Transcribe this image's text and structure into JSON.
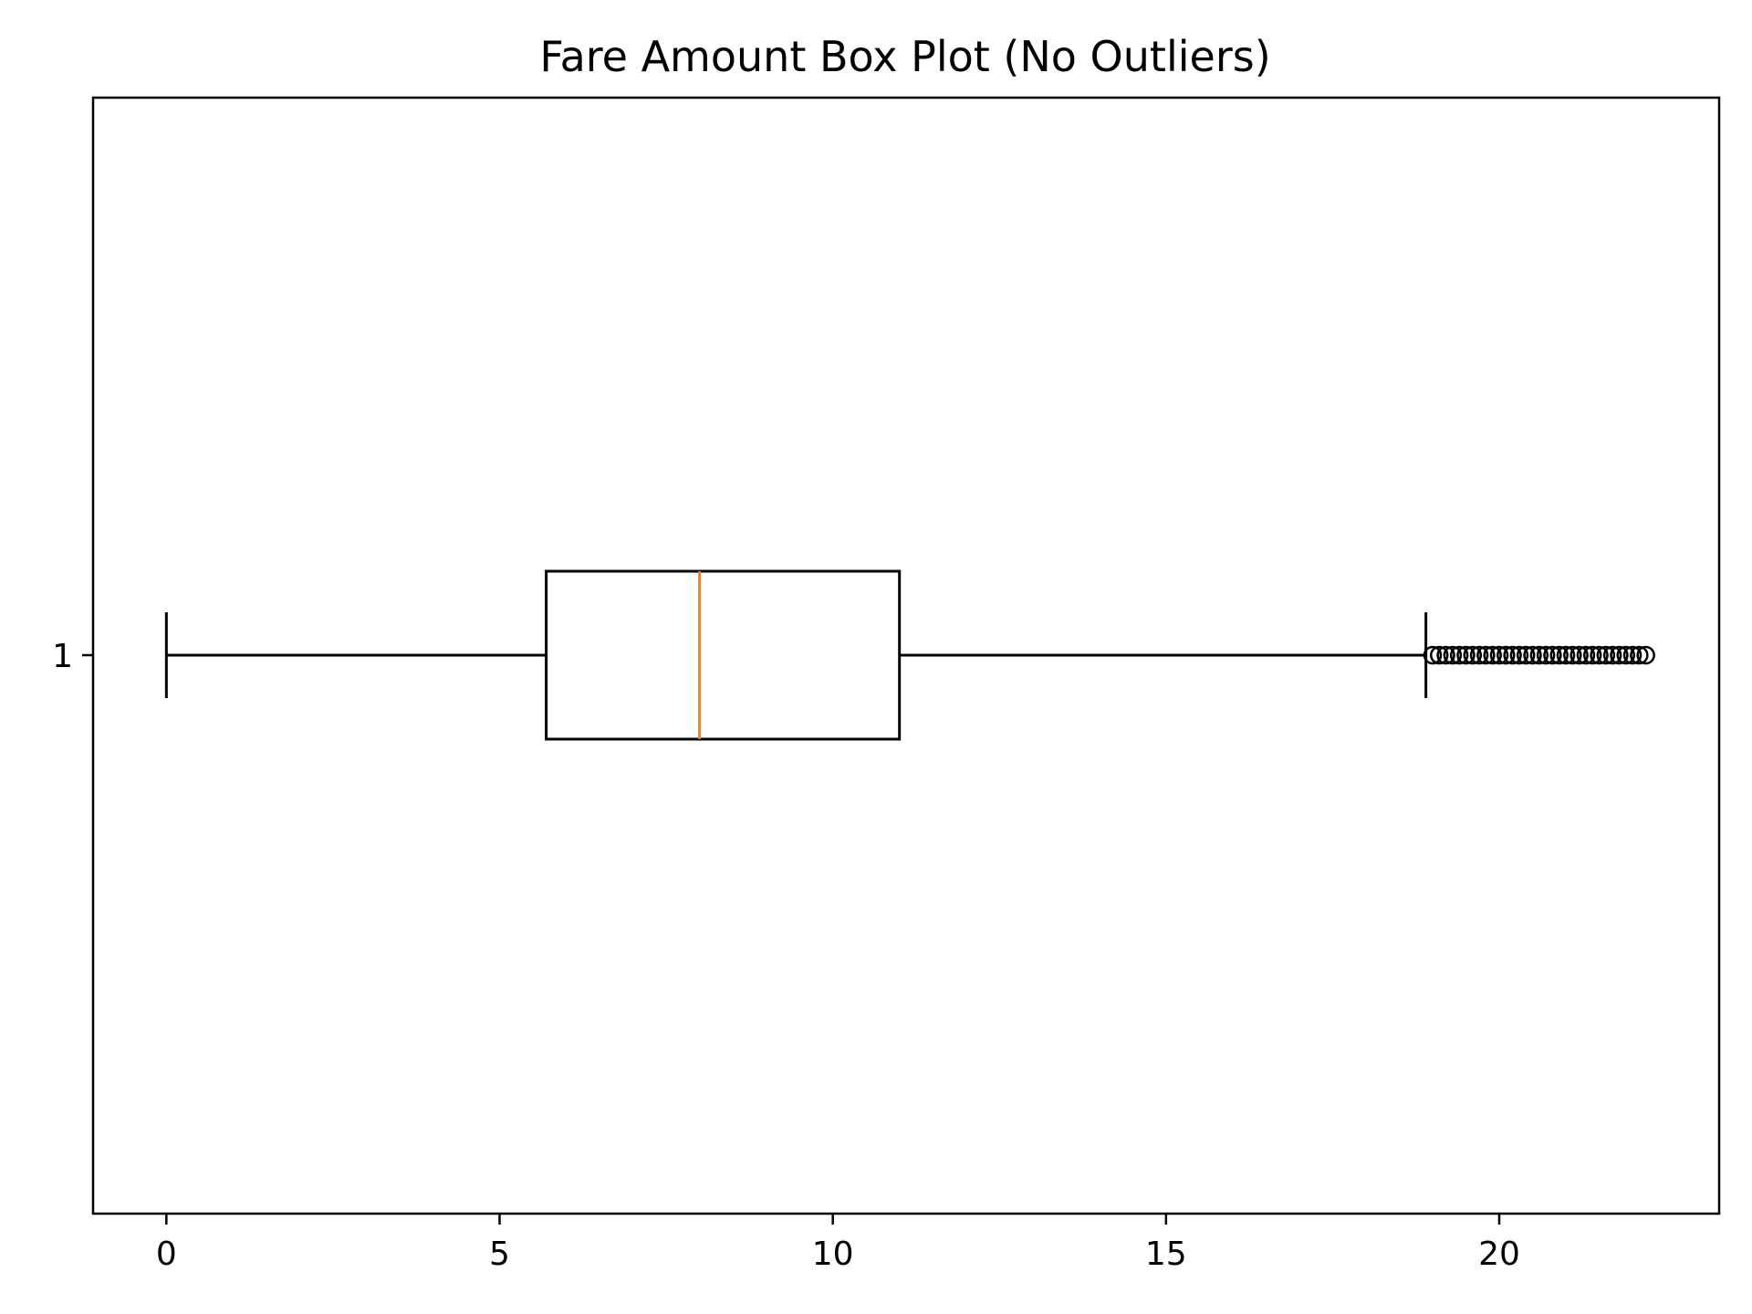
{
  "chart_data": {
    "type": "boxplot",
    "orientation": "horizontal",
    "title": "Fare Amount Box Plot (No Outliers)",
    "xlabel": "",
    "ylabel": "",
    "xlim": [
      -1.1,
      23.3
    ],
    "xticks": [
      0,
      5,
      10,
      15,
      20
    ],
    "xtick_labels": [
      "0",
      "5",
      "10",
      "15",
      "20"
    ],
    "yticks": [
      1
    ],
    "ytick_labels": [
      "1"
    ],
    "grid": false,
    "series": [
      {
        "position": 1,
        "whisker_low": 0.0,
        "q1": 5.7,
        "median": 8.0,
        "q3": 11.0,
        "whisker_high": 18.9,
        "fliers": [
          19.0,
          19.1,
          19.2,
          19.3,
          19.4,
          19.5,
          19.6,
          19.7,
          19.8,
          19.9,
          20.0,
          20.1,
          20.2,
          20.3,
          20.4,
          20.5,
          20.6,
          20.7,
          20.8,
          20.9,
          21.0,
          21.1,
          21.2,
          21.3,
          21.4,
          21.5,
          21.6,
          21.7,
          21.8,
          21.9,
          22.0,
          22.1,
          22.2
        ]
      }
    ],
    "colors": {
      "box": "#000000",
      "median": "#ff7f0e",
      "whisker": "#000000",
      "flier": "#000000"
    }
  }
}
